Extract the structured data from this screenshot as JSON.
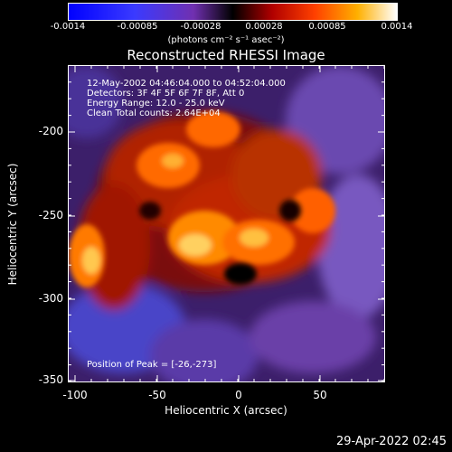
{
  "colorbar": {
    "ticks": [
      "-0.0014",
      "-0.00085",
      "-0.00028",
      "0.00028",
      "0.00085",
      "0.0014"
    ],
    "unit_label": "(photons cm⁻² s⁻¹ asec⁻²)"
  },
  "plot": {
    "title": "Reconstructed RHESSI Image",
    "info_lines": [
      "12-May-2002 04:46:04.000 to 04:52:04.000",
      "Detectors: 3F 4F 5F 6F 7F 8F, Att 0",
      "Energy Range: 12.0 - 25.0 keV",
      "Clean     Total counts: 2.64E+04"
    ],
    "peak_text": "Position of Peak = [-26,-273]",
    "x_ticks": [
      "-100",
      "-50",
      "0",
      "50"
    ],
    "y_ticks": [
      "-200",
      "-250",
      "-300",
      "-350"
    ],
    "xlabel": "Heliocentric X (arcsec)",
    "ylabel": "Heliocentric Y (arcsec)"
  },
  "footer": {
    "timestamp": "29-Apr-2022 02:45"
  }
}
